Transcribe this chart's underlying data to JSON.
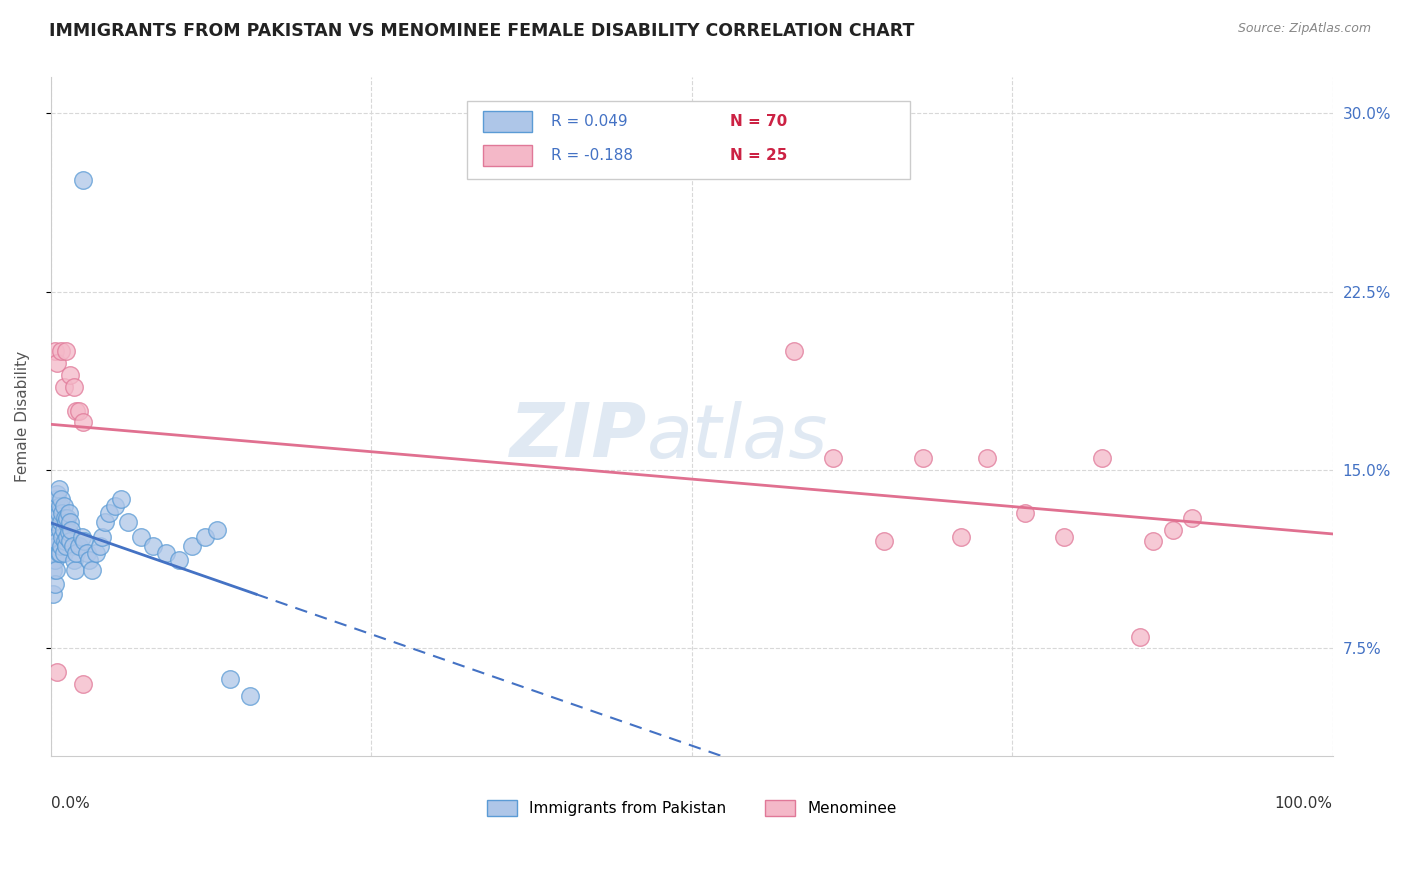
{
  "title": "IMMIGRANTS FROM PAKISTAN VS MENOMINEE FEMALE DISABILITY CORRELATION CHART",
  "source": "Source: ZipAtlas.com",
  "ylabel": "Female Disability",
  "xlim": [
    0.0,
    1.0
  ],
  "ylim": [
    0.03,
    0.315
  ],
  "yticks": [
    0.075,
    0.15,
    0.225,
    0.3
  ],
  "ytick_labels": [
    "7.5%",
    "15.0%",
    "22.5%",
    "30.0%"
  ],
  "legend_r1": "R = 0.049",
  "legend_n1": "N = 70",
  "legend_r2": "R = -0.188",
  "legend_n2": "N = 25",
  "blue_fill": "#aec6e8",
  "blue_edge": "#5b9bd5",
  "pink_fill": "#f4b8c8",
  "pink_edge": "#e07898",
  "blue_line": "#4472c4",
  "pink_line": "#e07090",
  "grid_color": "#d8d8d8",
  "pakistan_x": [
    0.001,
    0.001,
    0.002,
    0.002,
    0.002,
    0.002,
    0.003,
    0.003,
    0.003,
    0.003,
    0.004,
    0.004,
    0.004,
    0.004,
    0.005,
    0.005,
    0.005,
    0.006,
    0.006,
    0.006,
    0.007,
    0.007,
    0.007,
    0.008,
    0.008,
    0.008,
    0.009,
    0.009,
    0.01,
    0.01,
    0.01,
    0.011,
    0.011,
    0.012,
    0.012,
    0.013,
    0.013,
    0.014,
    0.014,
    0.015,
    0.015,
    0.016,
    0.017,
    0.018,
    0.019,
    0.02,
    0.022,
    0.024,
    0.025,
    0.026,
    0.028,
    0.03,
    0.032,
    0.035,
    0.038,
    0.04,
    0.042,
    0.045,
    0.05,
    0.055,
    0.06,
    0.07,
    0.08,
    0.09,
    0.1,
    0.11,
    0.12,
    0.13,
    0.14,
    0.155
  ],
  "pakistan_y": [
    0.13,
    0.12,
    0.125,
    0.115,
    0.108,
    0.098,
    0.132,
    0.122,
    0.112,
    0.102,
    0.138,
    0.128,
    0.118,
    0.108,
    0.14,
    0.13,
    0.12,
    0.142,
    0.132,
    0.115,
    0.135,
    0.125,
    0.115,
    0.138,
    0.128,
    0.118,
    0.132,
    0.122,
    0.135,
    0.125,
    0.115,
    0.13,
    0.12,
    0.128,
    0.118,
    0.13,
    0.122,
    0.132,
    0.124,
    0.128,
    0.12,
    0.125,
    0.118,
    0.112,
    0.108,
    0.115,
    0.118,
    0.122,
    0.272,
    0.12,
    0.115,
    0.112,
    0.108,
    0.115,
    0.118,
    0.122,
    0.128,
    0.132,
    0.135,
    0.138,
    0.128,
    0.122,
    0.118,
    0.115,
    0.112,
    0.118,
    0.122,
    0.125,
    0.062,
    0.055
  ],
  "menominee_x": [
    0.003,
    0.005,
    0.008,
    0.01,
    0.012,
    0.015,
    0.018,
    0.02,
    0.022,
    0.025,
    0.58,
    0.61,
    0.65,
    0.68,
    0.71,
    0.73,
    0.76,
    0.79,
    0.82,
    0.85,
    0.86,
    0.875,
    0.89,
    0.005,
    0.025
  ],
  "menominee_y": [
    0.2,
    0.195,
    0.2,
    0.185,
    0.2,
    0.19,
    0.185,
    0.175,
    0.175,
    0.17,
    0.2,
    0.155,
    0.12,
    0.155,
    0.122,
    0.155,
    0.132,
    0.122,
    0.155,
    0.08,
    0.12,
    0.125,
    0.13,
    0.065,
    0.06
  ]
}
